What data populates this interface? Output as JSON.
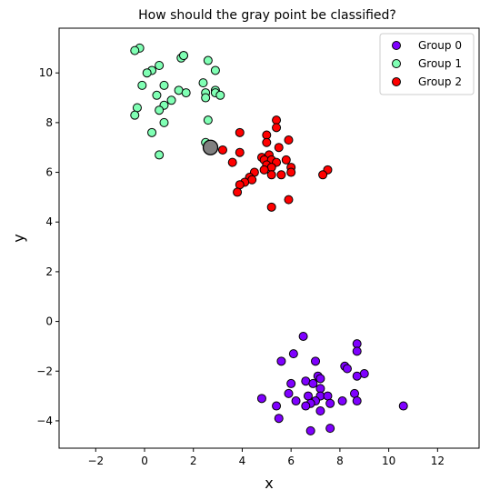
{
  "chart_data": {
    "type": "scatter",
    "title": "How should the gray point be classified?",
    "xlabel": "x",
    "ylabel": "y",
    "xlim": [
      -3.5,
      13.7
    ],
    "ylim": [
      -5.1,
      11.8
    ],
    "xticks": [
      -2,
      0,
      2,
      4,
      6,
      8,
      10,
      12
    ],
    "yticks": [
      -4,
      -2,
      0,
      2,
      4,
      6,
      8,
      10
    ],
    "grid": false,
    "legend_position": "top-right",
    "series": [
      {
        "name": "Group 0",
        "color": "#7f00ff",
        "points": [
          [
            6.5,
            -0.6
          ],
          [
            8.7,
            -0.9
          ],
          [
            8.7,
            -1.2
          ],
          [
            6.1,
            -1.3
          ],
          [
            5.6,
            -1.6
          ],
          [
            7.0,
            -1.6
          ],
          [
            8.2,
            -1.8
          ],
          [
            8.3,
            -1.9
          ],
          [
            9.0,
            -2.1
          ],
          [
            7.1,
            -2.2
          ],
          [
            8.7,
            -2.2
          ],
          [
            7.2,
            -2.3
          ],
          [
            6.6,
            -2.4
          ],
          [
            6.0,
            -2.5
          ],
          [
            6.9,
            -2.5
          ],
          [
            7.2,
            -2.7
          ],
          [
            5.9,
            -2.9
          ],
          [
            8.6,
            -2.9
          ],
          [
            6.7,
            -3.0
          ],
          [
            7.2,
            -3.0
          ],
          [
            7.5,
            -3.0
          ],
          [
            4.8,
            -3.1
          ],
          [
            6.2,
            -3.2
          ],
          [
            7.0,
            -3.2
          ],
          [
            8.1,
            -3.2
          ],
          [
            8.7,
            -3.2
          ],
          [
            6.8,
            -3.3
          ],
          [
            7.6,
            -3.3
          ],
          [
            5.4,
            -3.4
          ],
          [
            6.6,
            -3.4
          ],
          [
            10.6,
            -3.4
          ],
          [
            7.2,
            -3.6
          ],
          [
            5.5,
            -3.9
          ],
          [
            7.6,
            -4.3
          ],
          [
            6.8,
            -4.4
          ]
        ]
      },
      {
        "name": "Group 1",
        "color": "#80ffb4",
        "points": [
          [
            -0.2,
            11.0
          ],
          [
            -0.4,
            10.9
          ],
          [
            1.6,
            10.7
          ],
          [
            1.5,
            10.6
          ],
          [
            1.6,
            10.7
          ],
          [
            2.6,
            10.5
          ],
          [
            0.6,
            10.3
          ],
          [
            0.3,
            10.1
          ],
          [
            0.1,
            10.0
          ],
          [
            2.9,
            10.1
          ],
          [
            -0.1,
            9.5
          ],
          [
            0.8,
            9.5
          ],
          [
            2.4,
            9.6
          ],
          [
            1.4,
            9.3
          ],
          [
            1.7,
            9.2
          ],
          [
            2.9,
            9.3
          ],
          [
            2.9,
            9.2
          ],
          [
            2.5,
            9.2
          ],
          [
            3.1,
            9.1
          ],
          [
            0.5,
            9.1
          ],
          [
            2.5,
            9.0
          ],
          [
            1.1,
            8.9
          ],
          [
            0.8,
            8.7
          ],
          [
            -0.3,
            8.6
          ],
          [
            0.6,
            8.5
          ],
          [
            -0.4,
            8.3
          ],
          [
            2.6,
            8.1
          ],
          [
            0.8,
            8.0
          ],
          [
            0.3,
            7.6
          ],
          [
            2.5,
            7.2
          ],
          [
            0.6,
            6.7
          ]
        ]
      },
      {
        "name": "Group 2",
        "color": "#ff0000",
        "points": [
          [
            5.4,
            8.1
          ],
          [
            5.4,
            7.8
          ],
          [
            3.9,
            7.6
          ],
          [
            5.0,
            7.5
          ],
          [
            5.9,
            7.3
          ],
          [
            5.0,
            7.2
          ],
          [
            5.5,
            7.0
          ],
          [
            3.2,
            6.9
          ],
          [
            3.9,
            6.8
          ],
          [
            5.1,
            6.7
          ],
          [
            4.8,
            6.6
          ],
          [
            4.9,
            6.5
          ],
          [
            5.2,
            6.5
          ],
          [
            5.8,
            6.5
          ],
          [
            5.4,
            6.4
          ],
          [
            3.6,
            6.4
          ],
          [
            5.0,
            6.3
          ],
          [
            5.2,
            6.2
          ],
          [
            6.0,
            6.2
          ],
          [
            4.9,
            6.1
          ],
          [
            7.5,
            6.1
          ],
          [
            6.0,
            6.0
          ],
          [
            4.5,
            6.0
          ],
          [
            5.2,
            5.9
          ],
          [
            5.6,
            5.9
          ],
          [
            7.3,
            5.9
          ],
          [
            4.3,
            5.8
          ],
          [
            4.4,
            5.7
          ],
          [
            4.1,
            5.6
          ],
          [
            3.9,
            5.5
          ],
          [
            3.8,
            5.2
          ],
          [
            5.9,
            4.9
          ],
          [
            5.2,
            4.6
          ]
        ]
      }
    ],
    "query_point": {
      "color": "#808080",
      "x": 2.7,
      "y": 7.0
    }
  }
}
